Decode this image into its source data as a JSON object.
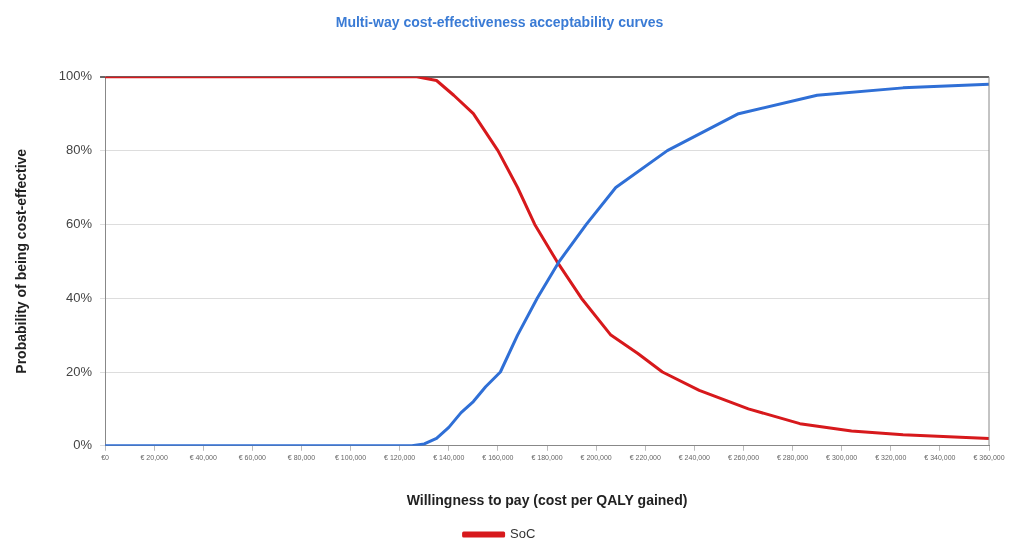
{
  "chart_data": {
    "type": "line",
    "title": "Multi-way cost-effectiveness acceptability curves",
    "xlabel": "Willingness to pay (cost per QALY gained)",
    "ylabel": "Probability of being cost-effective",
    "xlim": [
      0,
      360000
    ],
    "xticks": [
      {
        "value": 0,
        "label": "€0"
      },
      {
        "value": 20000,
        "label": "€ 20,000"
      },
      {
        "value": 40000,
        "label": "€ 40,000"
      },
      {
        "value": 60000,
        "label": "€ 60,000"
      },
      {
        "value": 80000,
        "label": "€ 80,000"
      },
      {
        "value": 100000,
        "label": "€ 100,000"
      },
      {
        "value": 120000,
        "label": "€ 120,000"
      },
      {
        "value": 140000,
        "label": "€ 140,000"
      },
      {
        "value": 160000,
        "label": "€ 160,000"
      },
      {
        "value": 180000,
        "label": "€ 180,000"
      },
      {
        "value": 200000,
        "label": "€ 200,000"
      },
      {
        "value": 220000,
        "label": "€ 220,000"
      },
      {
        "value": 240000,
        "label": "€ 240,000"
      },
      {
        "value": 260000,
        "label": "€ 260,000"
      },
      {
        "value": 280000,
        "label": "€ 280,000"
      },
      {
        "value": 300000,
        "label": "€ 300,000"
      },
      {
        "value": 320000,
        "label": "€ 320,000"
      },
      {
        "value": 340000,
        "label": "€ 340,000"
      },
      {
        "value": 360000,
        "label": "€ 360,000"
      }
    ],
    "ylim": [
      0,
      100
    ],
    "yticks": [
      {
        "value": 0,
        "label": "0%"
      },
      {
        "value": 20,
        "label": "20%"
      },
      {
        "value": 40,
        "label": "40%"
      },
      {
        "value": 60,
        "label": "60%"
      },
      {
        "value": 80,
        "label": "80%"
      },
      {
        "value": 100,
        "label": "100%"
      }
    ],
    "grid": "y",
    "legend": "bottom",
    "marker": "none",
    "line_style": "solid",
    "series": [
      {
        "color": "#2f6fd6",
        "x": [
          0,
          125000,
          130000,
          135000,
          140000,
          145000,
          150000,
          155000,
          161000,
          168000,
          176000,
          185000,
          196000,
          208000,
          229000,
          258000,
          290000,
          325000,
          360000
        ],
        "values": [
          0,
          0,
          0.5,
          2,
          5,
          9,
          12,
          16,
          20,
          30,
          40,
          50,
          60,
          70,
          80,
          90,
          95,
          97,
          98
        ]
      },
      {
        "name": "SoC",
        "color": "#d7191c",
        "x": [
          0,
          127000,
          135000,
          142000,
          150000,
          160000,
          168000,
          175000,
          184000,
          194000,
          206000,
          217000,
          227000,
          242000,
          262000,
          283000,
          304000,
          325000,
          360000
        ],
        "values": [
          100,
          100,
          99,
          95,
          90,
          80,
          70,
          60,
          50,
          40,
          30,
          25,
          20,
          15,
          10,
          6,
          4,
          3,
          2
        ]
      }
    ]
  }
}
